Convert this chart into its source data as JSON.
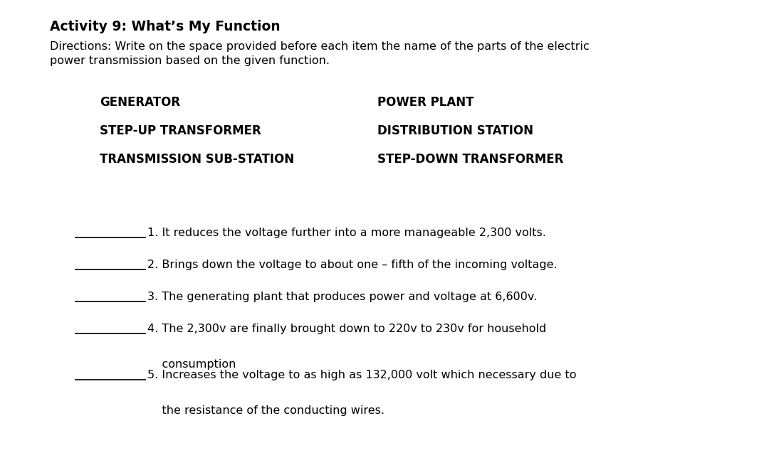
{
  "title": "Activity 9: What’s My Function",
  "directions_line1": "Directions: Write on the space provided before each item the name of the parts of the electric",
  "directions_line2": "power transmission based on the given function.",
  "word_bank_left": [
    "GENERATOR",
    "STEP-UP TRANSFORMER",
    "TRANSMISSION SUB-STATION"
  ],
  "word_bank_right": [
    "POWER PLANT",
    "DISTRIBUTION STATION",
    "STEP-DOWN TRANSFORMER"
  ],
  "items_line1": [
    "1. It reduces the voltage further into a more manageable 2,300 volts.",
    "2. Brings down the voltage to about one – fifth of the incoming voltage.",
    "3. The generating plant that produces power and voltage at 6,600v.",
    "4. The 2,300v are finally brought down to 220v to 230v for household",
    "5. Increases the voltage to as high as 132,000 volt which necessary due to"
  ],
  "items_line2": [
    "",
    "",
    "",
    "    consumption",
    "    the resistance of the conducting wires."
  ],
  "background_color": "#ffffff",
  "text_color": "#000000",
  "line_color": "#000000",
  "title_fontsize": 13.5,
  "directions_fontsize": 11.5,
  "wordbank_fontsize": 12,
  "item_fontsize": 11.5,
  "fig_width": 10.8,
  "fig_height": 6.68,
  "dpi": 100
}
